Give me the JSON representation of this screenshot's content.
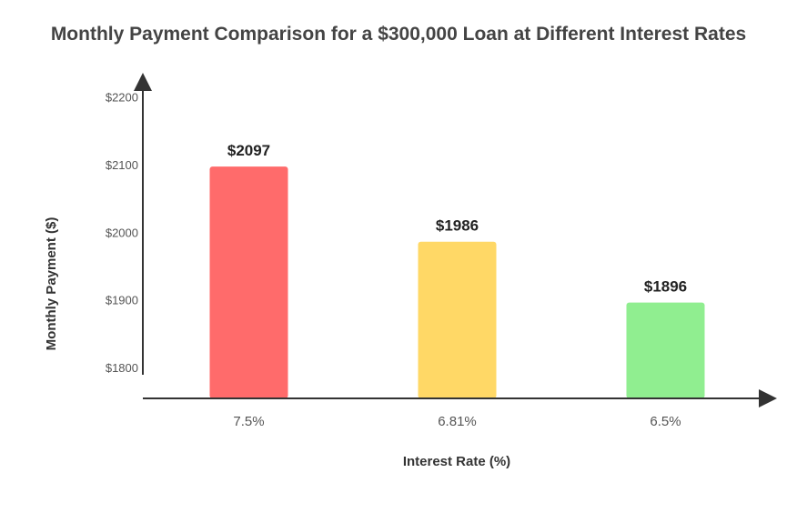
{
  "chart_data": {
    "type": "bar",
    "title": "Monthly Payment Comparison for a $300,000 Loan at Different Interest Rates",
    "xlabel": "Interest Rate (%)",
    "ylabel": "Monthly Payment ($)",
    "categories": [
      "7.5%",
      "6.81%",
      "6.5%"
    ],
    "values": [
      2097,
      1986,
      1896
    ],
    "data_labels": [
      "$2097",
      "$1986",
      "$1896"
    ],
    "bar_colors": [
      "#ff6b6b",
      "#ffd866",
      "#90ee90"
    ],
    "yticks": [
      1800,
      1900,
      2000,
      2100,
      2200
    ],
    "ytick_labels": [
      "$1800",
      "$1900",
      "$2000",
      "$2100",
      "$2200"
    ],
    "ylim": [
      1760,
      2200
    ],
    "grid": false,
    "legend": "none"
  }
}
